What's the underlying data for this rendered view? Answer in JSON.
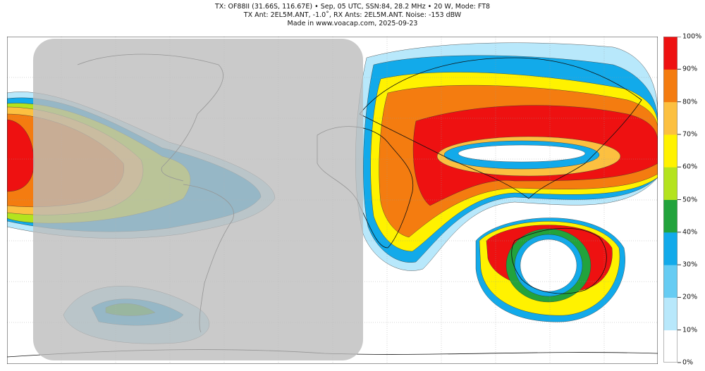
{
  "title_lines": [
    "TX: OF88II (31.66S, 116.67E) • Sep, 05 UTC, SSN:84, 28.2 MHz • 20 W, Mode: FT8",
    "TX Ant: 2EL5M.ANT, -1.0˚, RX Ants: 2EL5M.ANT. Noise: -153 dBW",
    "Made in www.voacap.com, 2025-09-23"
  ],
  "colorbar": {
    "labels": [
      "100%",
      "90%",
      "80%",
      "70%",
      "60%",
      "50%",
      "40%",
      "30%",
      "20%",
      "10%",
      "0%"
    ],
    "bands": [
      {
        "range": "0-10",
        "color": "#ffffff"
      },
      {
        "range": "10-20",
        "color": "#b8e8fb"
      },
      {
        "range": "20-30",
        "color": "#66ccf3"
      },
      {
        "range": "30-40",
        "color": "#12aaea"
      },
      {
        "range": "40-50",
        "color": "#22a33c"
      },
      {
        "range": "50-60",
        "color": "#b4e31e"
      },
      {
        "range": "60-70",
        "color": "#fff200"
      },
      {
        "range": "70-80",
        "color": "#fcc040"
      },
      {
        "range": "80-90",
        "color": "#f47c10"
      },
      {
        "range": "90-100",
        "color": "#ee1111"
      }
    ]
  },
  "night_overlay_color": "#bbbbbb"
}
